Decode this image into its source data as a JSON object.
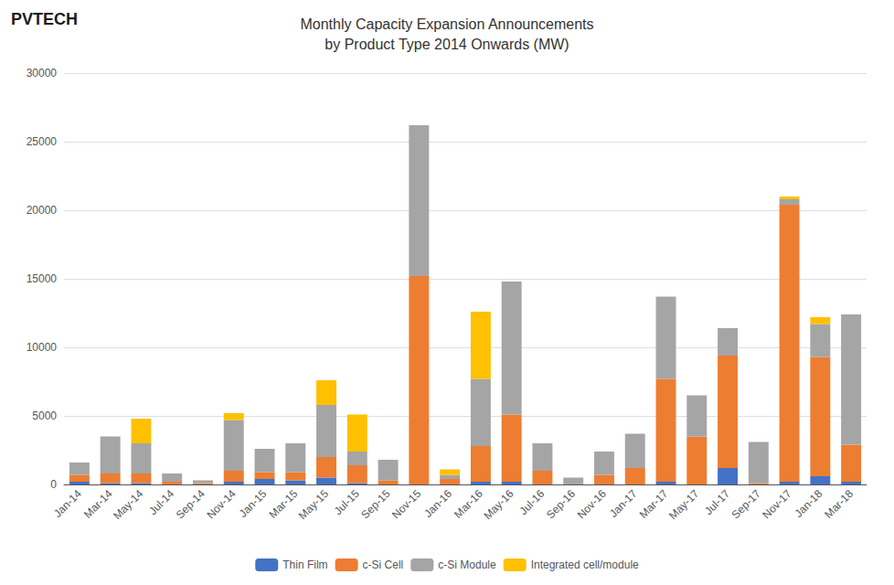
{
  "chart_data": {
    "type": "bar",
    "title": "Monthly Capacity Expansion Announcements\nby Product Type 2014 Onwards (MW)",
    "annotations": [
      "PVTECH"
    ],
    "categories": [
      "Jan-14",
      "Mar-14",
      "May-14",
      "Jul-14",
      "Sep-14",
      "Nov-14",
      "Jan-15",
      "Mar-15",
      "May-15",
      "Jul-15",
      "Sep-15",
      "Nov-15",
      "Jan-16",
      "Mar-16",
      "May-16",
      "Jul-16",
      "Sep-16",
      "Nov-16",
      "Jan-17",
      "Mar-17",
      "May-17",
      "Jul-17",
      "Sep-17",
      "Nov-17",
      "Jan-18",
      "Mar-18"
    ],
    "series": [
      {
        "name": "Thin Film",
        "color": "#4472C4",
        "values": [
          200,
          100,
          100,
          0,
          0,
          200,
          400,
          300,
          500,
          100,
          0,
          0,
          0,
          200,
          200,
          0,
          0,
          0,
          0,
          200,
          0,
          1200,
          0,
          200,
          600,
          200
        ]
      },
      {
        "name": "c-Si Cell",
        "color": "#ED7D31",
        "values": [
          500,
          700,
          700,
          200,
          100,
          800,
          500,
          600,
          1500,
          1300,
          300,
          15200,
          400,
          2600,
          4900,
          1000,
          0,
          700,
          1200,
          7500,
          3500,
          8200,
          100,
          20200,
          8700,
          2700
        ]
      },
      {
        "name": "c-Si Module",
        "color": "#A5A5A5",
        "values": [
          900,
          2700,
          2200,
          600,
          200,
          3700,
          1700,
          2100,
          3800,
          1000,
          1500,
          11000,
          300,
          4900,
          9700,
          2000,
          500,
          1700,
          2500,
          6000,
          3000,
          2000,
          3000,
          400,
          2400,
          9500
        ]
      },
      {
        "name": "Integrated cell/module",
        "color": "#FFC000",
        "values": [
          0,
          0,
          1800,
          0,
          0,
          500,
          0,
          0,
          1800,
          2700,
          0,
          0,
          400,
          4900,
          0,
          0,
          0,
          0,
          0,
          0,
          0,
          0,
          0,
          200,
          500,
          0
        ]
      }
    ],
    "stacked": true,
    "ylim": [
      0,
      30000
    ],
    "yticks": [
      0,
      5000,
      10000,
      15000,
      20000,
      25000,
      30000
    ],
    "grid": true,
    "legend": "bottom"
  }
}
